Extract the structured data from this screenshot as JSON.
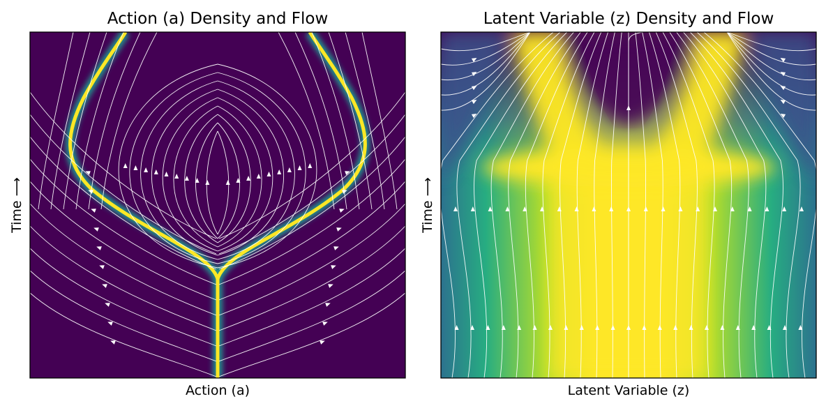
{
  "colors": {
    "viridis_low": "#440154",
    "viridis_mid": "#21918c",
    "viridis_high": "#fde725",
    "stream": "#ffffff"
  },
  "chart_data": [
    {
      "type": "heatmap",
      "title": "Action (a) Density and Flow",
      "xlabel": "Action (a)",
      "ylabel": "Time ⟶",
      "colormap": "viridis",
      "overlay": "streamlines",
      "xticks": [],
      "yticks": [],
      "grid": false,
      "density": {
        "description_of_values": "relative density 0-1",
        "x": [
          -1.0,
          -0.5,
          0.0,
          0.5,
          1.0
        ],
        "t": [
          0.0,
          0.25,
          0.5,
          0.75,
          1.0
        ],
        "ridge_centers_abs_x": [
          0.0,
          0.0,
          0.28,
          0.75,
          0.5
        ],
        "ridge_width": 0.03
      }
    },
    {
      "type": "heatmap",
      "title": "Latent Variable (z) Density and Flow",
      "xlabel": "Latent Variable (z)",
      "ylabel": "Time ⟶",
      "colormap": "viridis",
      "overlay": "streamlines",
      "xticks": [],
      "yticks": [],
      "grid": false,
      "density": {
        "description_of_values": "relative density 0-1",
        "x": [
          -1.0,
          -0.5,
          0.0,
          0.5,
          1.0
        ],
        "t": [
          0.0,
          0.25,
          0.5,
          0.75,
          1.0
        ],
        "ridge_centers_abs_x": [
          0.0,
          0.0,
          0.0,
          0.45,
          0.5
        ],
        "ridge_width": 0.35
      }
    }
  ]
}
